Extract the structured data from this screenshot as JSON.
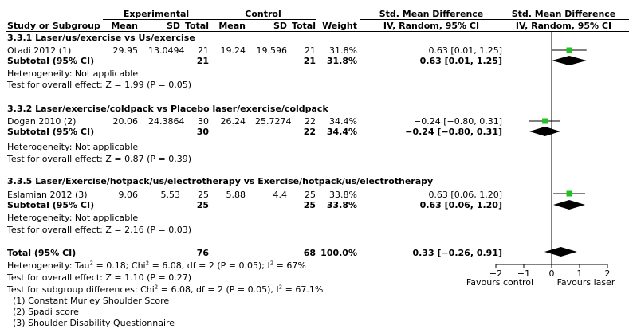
{
  "header": {
    "group_experimental": "Experimental",
    "group_control": "Control",
    "effect_title": "Std. Mean Difference",
    "effect_method": "IV, Random, 95% CI",
    "plot_title": "Std. Mean Difference",
    "plot_method": "IV, Random, 95% CI",
    "col_study": "Study or Subgroup",
    "col_mean": "Mean",
    "col_sd": "SD",
    "col_total": "Total",
    "col_weight": "Weight"
  },
  "subgroups": [
    {
      "title": "3.3.1 Laser/us/exercise vs Us/exercise",
      "study": {
        "name": "Otadi 2012 (1)",
        "exp_mean": "29.95",
        "exp_sd": "13.0494",
        "exp_total": "21",
        "ctl_mean": "19.24",
        "ctl_sd": "19.596",
        "ctl_total": "21",
        "weight": "31.8%",
        "ci": "0.63 [0.01, 1.25]"
      },
      "subtotal": {
        "label": "Subtotal (95% CI)",
        "exp_total": "21",
        "ctl_total": "21",
        "weight": "31.8%",
        "ci": "0.63 [0.01, 1.25]"
      },
      "heterogeneity": "Heterogeneity: Not applicable",
      "overall": "Test for overall effect: Z = 1.99 (P = 0.05)"
    },
    {
      "title": "3.3.2 Laser/exercise/coldpack vs Placebo laser/exercise/coldpack",
      "study": {
        "name": "Dogan 2010 (2)",
        "exp_mean": "20.06",
        "exp_sd": "24.3864",
        "exp_total": "30",
        "ctl_mean": "26.24",
        "ctl_sd": "25.7274",
        "ctl_total": "22",
        "weight": "34.4%",
        "ci": "−0.24 [−0.80, 0.31]"
      },
      "subtotal": {
        "label": "Subtotal (95% CI)",
        "exp_total": "30",
        "ctl_total": "22",
        "weight": "34.4%",
        "ci": "−0.24 [−0.80, 0.31]"
      },
      "heterogeneity": "Heterogeneity: Not applicable",
      "overall": "Test for overall effect: Z = 0.87 (P = 0.39)"
    },
    {
      "title": "3.3.5 Laser/Exercise/hotpack/us/electrotherapy vs Exercise/hotpack/us/electrotherapy",
      "study": {
        "name": "Eslamian 2012 (3)",
        "exp_mean": "9.06",
        "exp_sd": "5.53",
        "exp_total": "25",
        "ctl_mean": "5.88",
        "ctl_sd": "4.4",
        "ctl_total": "25",
        "weight": "33.8%",
        "ci": "0.63 [0.06, 1.20]"
      },
      "subtotal": {
        "label": "Subtotal (95% CI)",
        "exp_total": "25",
        "ctl_total": "25",
        "weight": "33.8%",
        "ci": "0.63 [0.06, 1.20]"
      },
      "heterogeneity": "Heterogeneity: Not applicable",
      "overall": "Test for overall effect: Z = 2.16 (P = 0.03)"
    }
  ],
  "total": {
    "label": "Total (95% CI)",
    "exp_total": "76",
    "ctl_total": "68",
    "weight": "100.0%",
    "ci": "0.33 [−0.26, 0.91]"
  },
  "footer": {
    "heterogeneity_a": "Heterogeneity: Tau",
    "heterogeneity_b": " = 0.18; Chi",
    "heterogeneity_c": " = 6.08, df = 2 (P = 0.05); I",
    "heterogeneity_d": " = 67%",
    "overall": "Test for overall effect: Z = 1.10 (P = 0.27)",
    "subgroup_a": "Test for subgroup differences: Chi",
    "subgroup_b": " = 6.08, df = 2 (P = 0.05), I",
    "subgroup_c": " = 67.1%",
    "sup2": "2",
    "notes": [
      "(1) Constant Murley Shoulder Score",
      "(2) Spadi score",
      "(3) Shoulder Disability Questionnaire"
    ]
  },
  "axis": {
    "favours_left": "Favours control",
    "favours_right": "Favours laser"
  },
  "chart_data": {
    "type": "forest",
    "xlim": [
      -2,
      2
    ],
    "ticks": [
      -2,
      -1,
      0,
      1,
      2
    ],
    "tick_labels": [
      "−2",
      "−1",
      "0",
      "1",
      "2"
    ],
    "studies": [
      {
        "name": "Otadi 2012",
        "est": 0.63,
        "lo": 0.01,
        "hi": 1.25
      },
      {
        "name": "Dogan 2010",
        "est": -0.24,
        "lo": -0.8,
        "hi": 0.31
      },
      {
        "name": "Eslamian 2012",
        "est": 0.63,
        "lo": 0.06,
        "hi": 1.2
      }
    ],
    "diamonds": [
      {
        "name": "Subtotal 3.3.1",
        "est": 0.63,
        "lo": 0.01,
        "hi": 1.25
      },
      {
        "name": "Subtotal 3.3.2",
        "est": -0.24,
        "lo": -0.8,
        "hi": 0.31
      },
      {
        "name": "Subtotal 3.3.5",
        "est": 0.63,
        "lo": 0.06,
        "hi": 1.2
      },
      {
        "name": "Total",
        "est": 0.33,
        "lo": -0.26,
        "hi": 0.91
      }
    ],
    "colors": {
      "study_marker": "#1fc21f",
      "line": "#000000",
      "diamond": "#000000"
    }
  }
}
